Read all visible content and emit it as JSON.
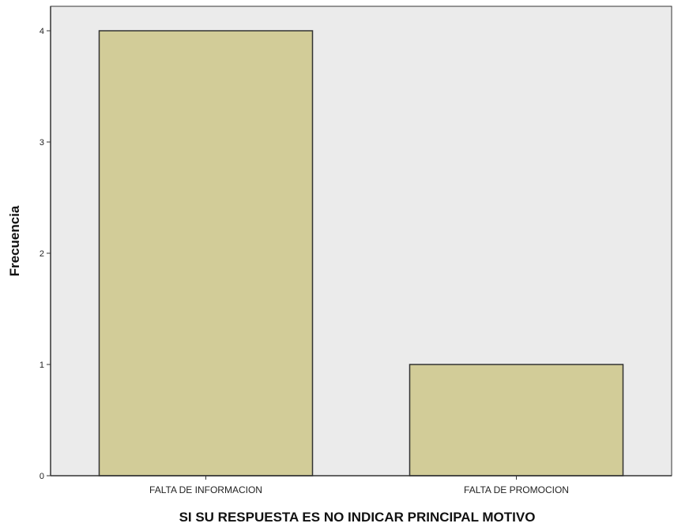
{
  "chart_data": {
    "type": "bar",
    "categories": [
      "FALTA DE INFORMACION",
      "FALTA DE PROMOCION"
    ],
    "values": [
      4,
      1
    ],
    "title": "",
    "xlabel": "SI SU RESPUESTA ES NO INDICAR PRINCIPAL MOTIVO",
    "ylabel": "Frecuencia",
    "ylim": [
      0,
      4
    ],
    "yticks": [
      "0",
      "1",
      "2",
      "3",
      "4"
    ],
    "grid": false,
    "legend": "none",
    "colors": {
      "plot_background": "#ebebeb",
      "bar_fill": "#d2cc98",
      "bar_stroke": "#333333",
      "axis": "#333333"
    }
  }
}
